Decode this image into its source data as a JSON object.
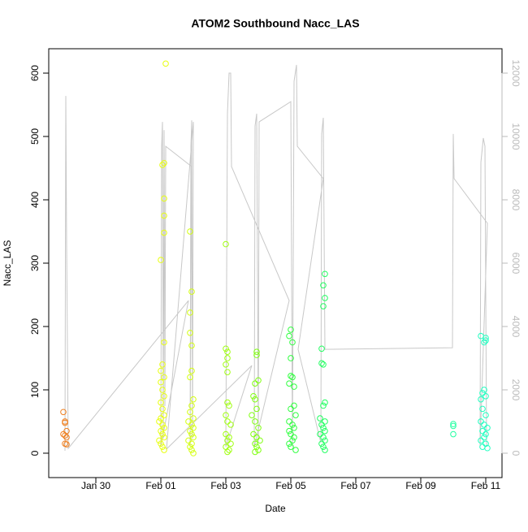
{
  "chart_data": {
    "type": "scatter",
    "title": "ATOM2 Southbound Nacc_LAS",
    "x_label": "Date",
    "y_label": "Nacc_LAS",
    "xlim": [
      28.55,
      42.5
    ],
    "ylim": [
      -38.5,
      638.5
    ],
    "y2lim": [
      -770,
      12770
    ],
    "xticks": [
      {
        "value": 30,
        "label": "Jan 30"
      },
      {
        "value": 32,
        "label": "Feb 01"
      },
      {
        "value": 34,
        "label": "Feb 03"
      },
      {
        "value": 36,
        "label": "Feb 05"
      },
      {
        "value": 38,
        "label": "Feb 07"
      },
      {
        "value": 40,
        "label": "Feb 09"
      },
      {
        "value": 42,
        "label": "Feb 11"
      }
    ],
    "yticks": [
      0,
      100,
      200,
      300,
      400,
      500,
      600
    ],
    "y2ticks": [
      0,
      2000,
      4000,
      6000,
      8000,
      10000,
      12000
    ],
    "series": [
      {
        "kind": "line",
        "axis": "y2",
        "color": "#c8c8c8",
        "x": [
          29.05,
          29.075,
          29.1,
          29.15,
          32.85,
          32.0,
          32.025,
          32.05,
          32.075,
          32.1,
          32.125,
          32.15,
          32.95,
          32.9,
          32.925,
          32.95,
          32.975,
          33.0,
          32.175,
          34.8,
          34.0,
          34.05,
          34.1,
          34.15,
          34.175,
          35.95,
          34.875,
          34.9,
          34.95,
          35.0,
          35.025,
          36.0,
          36.05,
          36.1,
          36.175,
          36.2,
          37.0,
          36.225,
          36.925,
          36.95,
          37.0,
          37.05,
          40.975,
          41.0,
          41.025,
          42.05,
          41.825,
          41.85,
          41.925,
          41.975,
          42.025
        ],
        "values": [
          77,
          11280,
          6620,
          150,
          4820,
          205,
          9690,
          10460,
          460,
          10200,
          1490,
          9690,
          9050,
          205,
          9690,
          10510,
          460,
          10460,
          130,
          2770,
          205,
          10720,
          12000,
          12000,
          9050,
          4820,
          205,
          10330,
          10720,
          330,
          10460,
          11100,
          205,
          11740,
          12260,
          9690,
          8670,
          3280,
          330,
          10080,
          10590,
          3280,
          3330,
          10080,
          8670,
          7260,
          205,
          9180,
          9950,
          9690,
          205
        ]
      },
      {
        "kind": "points",
        "color": "#f08020",
        "x": [
          29.0,
          29.05,
          29.05,
          29.1,
          29.0,
          29.05,
          29.1,
          29.05,
          29.1
        ],
        "values": [
          65,
          48,
          50,
          35,
          30,
          28,
          25,
          15,
          14
        ]
      },
      {
        "kind": "points",
        "color": "#e8ff10",
        "x": [
          32.15,
          32.1,
          32.05,
          32.1,
          32.1,
          32.1,
          32.0,
          32.1,
          32.05,
          32.0,
          32.1,
          32.0,
          32.05,
          32.1,
          32.0,
          32.05,
          32.1,
          32.0,
          31.95,
          32.05,
          32.1,
          32.0,
          32.05,
          32.1,
          31.95,
          32.0,
          32.05,
          32.1
        ],
        "values": [
          615,
          458,
          455,
          402,
          375,
          348,
          305,
          175,
          140,
          130,
          120,
          112,
          100,
          90,
          80,
          70,
          60,
          55,
          50,
          45,
          40,
          35,
          30,
          25,
          20,
          15,
          10,
          5
        ]
      },
      {
        "kind": "points",
        "color": "#d4ff10",
        "x": [
          32.9,
          32.95,
          32.9,
          32.9,
          32.95,
          32.95,
          32.9,
          33.0,
          32.95,
          32.9,
          33.0,
          32.85,
          32.95,
          33.0,
          32.9,
          32.95,
          33.0,
          32.85,
          32.95,
          32.9,
          32.95,
          33.0
        ],
        "values": [
          350,
          255,
          222,
          190,
          170,
          130,
          120,
          85,
          75,
          65,
          55,
          50,
          45,
          40,
          35,
          30,
          25,
          20,
          15,
          10,
          5,
          0
        ]
      },
      {
        "kind": "points",
        "color": "#a0ff10",
        "x": [
          34.0,
          34.0,
          34.05,
          34.05,
          34.0,
          34.05,
          34.05,
          34.1,
          34.0,
          34.05,
          34.15,
          34.0,
          34.1,
          34.05,
          34.15,
          34.0,
          34.1,
          34.05
        ],
        "values": [
          330,
          165,
          160,
          150,
          140,
          128,
          80,
          75,
          60,
          50,
          45,
          30,
          25,
          20,
          15,
          10,
          5,
          2
        ]
      },
      {
        "kind": "points",
        "color": "#80ff10",
        "x": [
          34.95,
          34.95,
          35.0,
          34.9,
          34.85,
          34.9,
          34.95,
          34.8,
          34.9,
          35.0,
          34.85,
          34.95,
          35.05,
          34.9,
          34.95,
          35.0,
          34.9
        ],
        "values": [
          160,
          155,
          115,
          110,
          90,
          85,
          70,
          60,
          50,
          40,
          30,
          25,
          20,
          15,
          10,
          5,
          2
        ]
      },
      {
        "kind": "points",
        "color": "#30ff40",
        "x": [
          36.0,
          35.95,
          36.05,
          36.0,
          36.0,
          36.05,
          35.95,
          36.1,
          36.1,
          36.0,
          36.15,
          35.95,
          36.05,
          36.1,
          35.95,
          36.0,
          36.1,
          36.05,
          35.95,
          36.0,
          36.15
        ],
        "values": [
          195,
          185,
          175,
          150,
          122,
          120,
          110,
          105,
          75,
          70,
          60,
          50,
          45,
          40,
          35,
          30,
          25,
          20,
          15,
          10,
          5
        ]
      },
      {
        "kind": "points",
        "color": "#20ff60",
        "x": [
          37.05,
          37.0,
          37.05,
          37.0,
          36.95,
          36.95,
          37.0,
          37.05,
          37.0,
          36.9,
          37.05,
          36.95,
          37.0,
          37.05,
          36.9,
          37.0,
          37.05,
          36.95,
          37.0,
          37.05
        ],
        "values": [
          283,
          265,
          245,
          232,
          165,
          142,
          140,
          80,
          75,
          55,
          50,
          45,
          40,
          35,
          30,
          25,
          20,
          15,
          10,
          5
        ]
      },
      {
        "kind": "points",
        "color": "#20ffa0",
        "x": [
          41.0,
          41.0,
          41.0
        ],
        "values": [
          46,
          43,
          30
        ]
      },
      {
        "kind": "points",
        "color": "#20ffc0",
        "x": [
          41.85,
          42.0,
          42.0,
          41.95,
          41.95,
          41.9,
          42.0,
          41.85,
          41.9,
          42.0,
          41.85,
          41.95,
          42.05,
          41.9,
          42.0,
          41.95,
          41.85,
          42.0,
          41.9,
          42.05
        ],
        "values": [
          185,
          182,
          178,
          175,
          100,
          95,
          90,
          85,
          70,
          60,
          50,
          45,
          40,
          35,
          30,
          25,
          20,
          15,
          10,
          8
        ]
      }
    ]
  }
}
